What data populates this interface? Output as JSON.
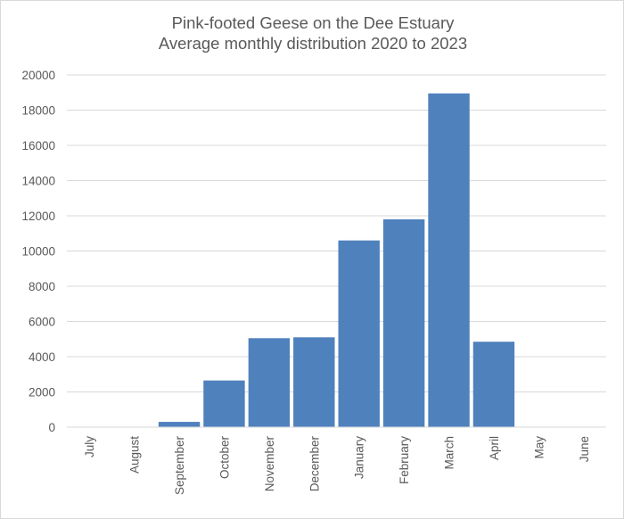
{
  "chart_data": {
    "type": "bar",
    "title": "Pink-footed Geese on the Dee Estuary",
    "subtitle": "Average monthly distribution 2020 to 2023",
    "xlabel": "",
    "ylabel": "",
    "categories": [
      "July",
      "August",
      "September",
      "October",
      "November",
      "December",
      "January",
      "February",
      "March",
      "April",
      "May",
      "June"
    ],
    "values": [
      0,
      0,
      300,
      2650,
      5050,
      5100,
      10600,
      11800,
      18950,
      4850,
      0,
      0
    ],
    "ylim": [
      0,
      20000
    ],
    "yticks": [
      "0",
      "2000",
      "4000",
      "6000",
      "8000",
      "10000",
      "12000",
      "14000",
      "16000",
      "18000",
      "20000"
    ],
    "grid": true,
    "legend": "none",
    "bar_color": "#4f81bd",
    "grid_color": "#d9d9d9"
  }
}
